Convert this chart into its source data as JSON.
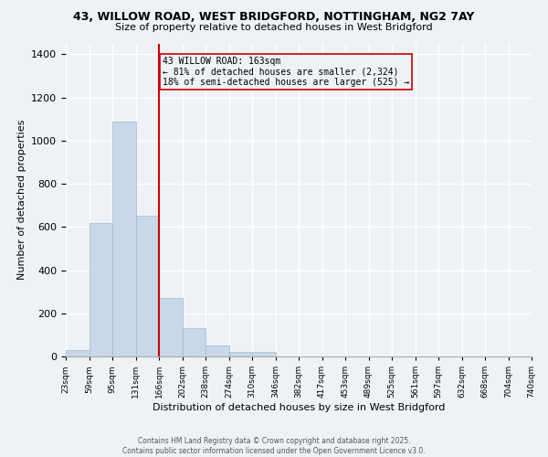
{
  "title_line1": "43, WILLOW ROAD, WEST BRIDGFORD, NOTTINGHAM, NG2 7AY",
  "title_line2": "Size of property relative to detached houses in West Bridgford",
  "xlabel": "Distribution of detached houses by size in West Bridgford",
  "ylabel": "Number of detached properties",
  "bar_color": "#c8d8e8",
  "bar_edge_color": "#a0b8d0",
  "bins": [
    "23sqm",
    "59sqm",
    "95sqm",
    "131sqm",
    "166sqm",
    "202sqm",
    "238sqm",
    "274sqm",
    "310sqm",
    "346sqm",
    "382sqm",
    "417sqm",
    "453sqm",
    "489sqm",
    "525sqm",
    "561sqm",
    "597sqm",
    "632sqm",
    "668sqm",
    "704sqm",
    "740sqm"
  ],
  "values": [
    30,
    620,
    1090,
    650,
    270,
    130,
    50,
    20,
    20,
    0,
    0,
    0,
    0,
    0,
    0,
    0,
    0,
    0,
    0,
    0
  ],
  "ylim": [
    0,
    1450
  ],
  "yticks": [
    0,
    200,
    400,
    600,
    800,
    1000,
    1200,
    1400
  ],
  "vline_label": "43 WILLOW ROAD: 163sqm",
  "annotation_line2": "← 81% of detached houses are smaller (2,324)",
  "annotation_line3": "18% of semi-detached houses are larger (525) →",
  "vline_color": "#cc0000",
  "annotation_box_color": "#cc0000",
  "footer_line1": "Contains HM Land Registry data © Crown copyright and database right 2025.",
  "footer_line2": "Contains public sector information licensed under the Open Government Licence v3.0.",
  "background_color": "#eef2f7",
  "grid_color": "#ffffff"
}
